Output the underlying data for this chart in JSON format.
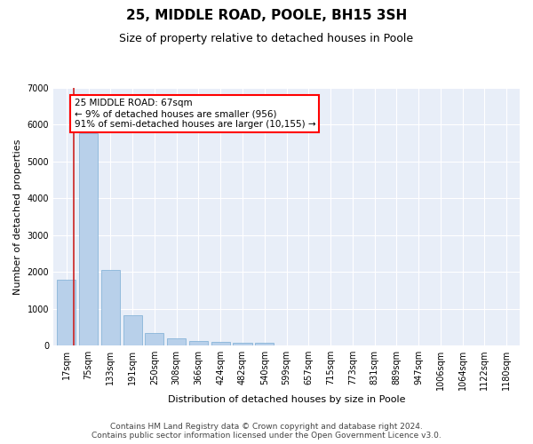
{
  "title": "25, MIDDLE ROAD, POOLE, BH15 3SH",
  "subtitle": "Size of property relative to detached houses in Poole",
  "xlabel": "Distribution of detached houses by size in Poole",
  "ylabel": "Number of detached properties",
  "bar_color": "#b8d0ea",
  "bar_edge_color": "#7aacd4",
  "highlight_color": "#cc2222",
  "annotation_text_line1": "25 MIDDLE ROAD: 67sqm",
  "annotation_text_line2": "← 9% of detached houses are smaller (956)",
  "annotation_text_line3": "91% of semi-detached houses are larger (10,155) →",
  "categories": [
    "17sqm",
    "75sqm",
    "133sqm",
    "191sqm",
    "250sqm",
    "308sqm",
    "366sqm",
    "424sqm",
    "482sqm",
    "540sqm",
    "599sqm",
    "657sqm",
    "715sqm",
    "773sqm",
    "831sqm",
    "889sqm",
    "947sqm",
    "1006sqm",
    "1064sqm",
    "1122sqm",
    "1180sqm"
  ],
  "values": [
    1780,
    5780,
    2060,
    820,
    340,
    190,
    120,
    110,
    85,
    65,
    0,
    0,
    0,
    0,
    0,
    0,
    0,
    0,
    0,
    0,
    0
  ],
  "highlight_bar_index": 1,
  "ylim": [
    0,
    7000
  ],
  "yticks": [
    0,
    1000,
    2000,
    3000,
    4000,
    5000,
    6000,
    7000
  ],
  "footer_line1": "Contains HM Land Registry data © Crown copyright and database right 2024.",
  "footer_line2": "Contains public sector information licensed under the Open Government Licence v3.0.",
  "plot_bg_color": "#e8eef8",
  "title_fontsize": 11,
  "subtitle_fontsize": 9,
  "axis_label_fontsize": 8,
  "tick_fontsize": 7,
  "footer_fontsize": 6.5,
  "annotation_fontsize": 7.5
}
